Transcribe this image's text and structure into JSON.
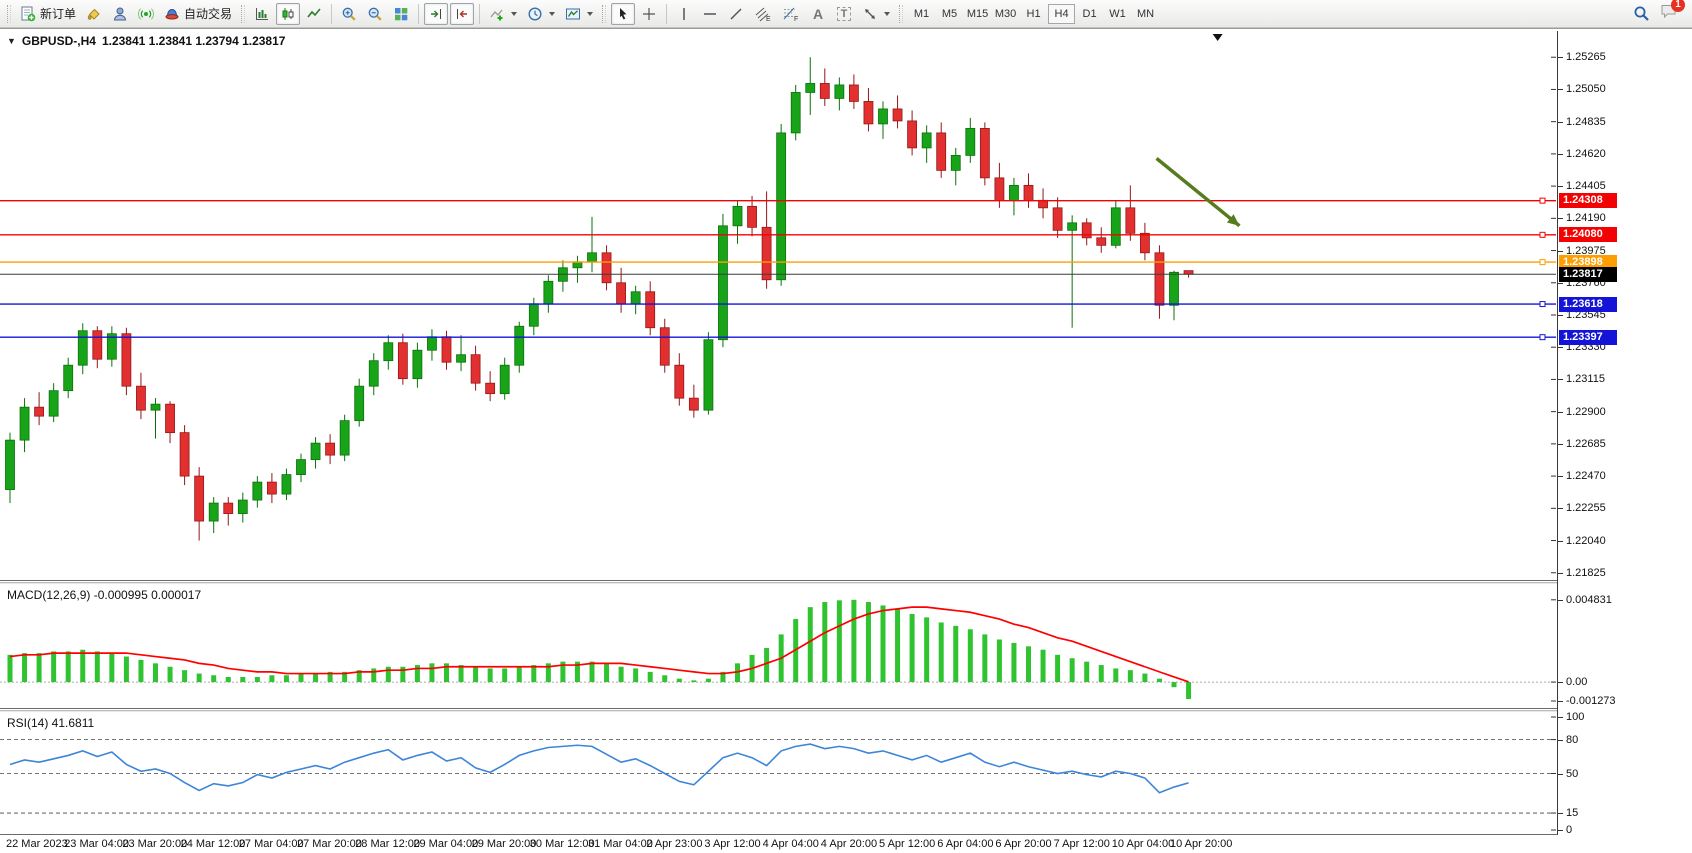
{
  "toolbar": {
    "new_order_label": "新订单",
    "auto_trading_label": "自动交易",
    "text_tool": "A",
    "text_label_tool": "T",
    "channel_suffix": "E",
    "fibo_suffix": "F",
    "timeframes": [
      "M1",
      "M5",
      "M15",
      "M30",
      "H1",
      "H4",
      "D1",
      "W1",
      "MN"
    ],
    "active_timeframe": "H4",
    "notification_count": "1"
  },
  "chart_data": [
    {
      "type": "candlestick",
      "symbol": "GBPUSD-,H4",
      "ohlc_display": "1.23841 1.23841 1.23794 1.23817",
      "ylim": [
        1.2177,
        1.2544
      ],
      "up_color": "#18a418",
      "up_stroke": "#0b700b",
      "down_color": "#e23030",
      "down_stroke": "#941717",
      "y_tick_labels": [
        "1.25265",
        "1.25050",
        "1.24835",
        "1.24620",
        "1.24405",
        "1.24190",
        "1.23975",
        "1.23760",
        "1.23545",
        "1.23330",
        "1.23115",
        "1.22900",
        "1.22685",
        "1.22470",
        "1.22255",
        "1.22040",
        "1.21825"
      ],
      "x_labels": [
        "22 Mar 2023",
        "23 Mar 04:00",
        "23 Mar 20:00",
        "24 Mar 12:00",
        "27 Mar 04:00",
        "27 Mar 20:00",
        "28 Mar 12:00",
        "29 Mar 04:00",
        "29 Mar 20:00",
        "30 Mar 12:00",
        "31 Mar 04:00",
        "2 Apr 23:00",
        "3 Apr 12:00",
        "4 Apr 04:00",
        "4 Apr 20:00",
        "5 Apr 12:00",
        "6 Apr 04:00",
        "6 Apr 20:00",
        "7 Apr 12:00",
        "10 Apr 04:00",
        "10 Apr 20:00"
      ],
      "levels": [
        {
          "price": 1.24308,
          "label": "1.24308",
          "color": "#f20202"
        },
        {
          "price": 1.2408,
          "label": "1.24080",
          "color": "#f20202"
        },
        {
          "price": 1.23898,
          "label": "1.23898",
          "color": "#ff9e00"
        },
        {
          "price": 1.23618,
          "label": "1.23618",
          "color": "#1414d8"
        },
        {
          "price": 1.23397,
          "label": "1.23397",
          "color": "#1414d8"
        }
      ],
      "current_price": {
        "price": 1.23817,
        "label": "1.23817",
        "line_color": "#3c3c3c",
        "badge_color": "#000000"
      },
      "annotations": {
        "arrow": {
          "from_index": 78.8,
          "from_price": 1.2459,
          "to_index": 84.5,
          "to_price": 1.2414,
          "color": "#567d1d"
        },
        "top_marker_index": 83
      },
      "candles": [
        [
          1.2238,
          1.2276,
          1.2229,
          1.2271
        ],
        [
          1.2271,
          1.2299,
          1.2263,
          1.2293
        ],
        [
          1.2293,
          1.2303,
          1.2281,
          1.2287
        ],
        [
          1.2287,
          1.2309,
          1.2283,
          1.2304
        ],
        [
          1.2304,
          1.2326,
          1.2299,
          1.2321
        ],
        [
          1.2321,
          1.2349,
          1.2315,
          1.2344
        ],
        [
          1.2344,
          1.2347,
          1.2319,
          1.2325
        ],
        [
          1.2325,
          1.2347,
          1.232,
          1.2342
        ],
        [
          1.2342,
          1.2346,
          1.2301,
          1.2307
        ],
        [
          1.2307,
          1.2316,
          1.2285,
          1.2291
        ],
        [
          1.2291,
          1.2299,
          1.2272,
          1.2295
        ],
        [
          1.2295,
          1.2297,
          1.2269,
          1.2276
        ],
        [
          1.2276,
          1.2281,
          1.2241,
          1.2247
        ],
        [
          1.2247,
          1.2253,
          1.2204,
          1.2217
        ],
        [
          1.2217,
          1.2233,
          1.2209,
          1.2229
        ],
        [
          1.2229,
          1.2233,
          1.2214,
          1.2222
        ],
        [
          1.2222,
          1.2236,
          1.2216,
          1.2231
        ],
        [
          1.2231,
          1.2247,
          1.2226,
          1.2243
        ],
        [
          1.2243,
          1.2249,
          1.2229,
          1.2235
        ],
        [
          1.2235,
          1.2252,
          1.2231,
          1.2248
        ],
        [
          1.2248,
          1.2262,
          1.2243,
          1.2258
        ],
        [
          1.2258,
          1.2273,
          1.2252,
          1.2269
        ],
        [
          1.2269,
          1.2275,
          1.2255,
          1.2261
        ],
        [
          1.2261,
          1.2288,
          1.2257,
          1.2284
        ],
        [
          1.2284,
          1.2312,
          1.228,
          1.2307
        ],
        [
          1.2307,
          1.2329,
          1.2301,
          1.2324
        ],
        [
          1.2324,
          1.2341,
          1.2318,
          1.2336
        ],
        [
          1.2336,
          1.2342,
          1.2308,
          1.2312
        ],
        [
          1.2312,
          1.2336,
          1.2306,
          1.2331
        ],
        [
          1.2331,
          1.2345,
          1.2324,
          1.234
        ],
        [
          1.234,
          1.2344,
          1.2318,
          1.2323
        ],
        [
          1.2323,
          1.2341,
          1.2317,
          1.2328
        ],
        [
          1.2328,
          1.2334,
          1.2304,
          1.2309
        ],
        [
          1.2309,
          1.2317,
          1.2297,
          1.2302
        ],
        [
          1.2302,
          1.2326,
          1.2298,
          1.2321
        ],
        [
          1.2321,
          1.235,
          1.2316,
          1.2347
        ],
        [
          1.2347,
          1.2366,
          1.2341,
          1.2362
        ],
        [
          1.2362,
          1.2381,
          1.2356,
          1.2377
        ],
        [
          1.2377,
          1.2391,
          1.237,
          1.2386
        ],
        [
          1.2386,
          1.2394,
          1.2376,
          1.239
        ],
        [
          1.239,
          1.242,
          1.2383,
          1.2396
        ],
        [
          1.2396,
          1.2401,
          1.2371,
          1.2376
        ],
        [
          1.2376,
          1.2386,
          1.2356,
          1.2362
        ],
        [
          1.2362,
          1.2374,
          1.2355,
          1.237
        ],
        [
          1.237,
          1.2377,
          1.2341,
          1.2346
        ],
        [
          1.2346,
          1.2352,
          1.2316,
          1.2321
        ],
        [
          1.2321,
          1.2329,
          1.2294,
          1.2299
        ],
        [
          1.2299,
          1.2308,
          1.2286,
          1.2291
        ],
        [
          1.2291,
          1.2343,
          1.2288,
          1.2338
        ],
        [
          1.2338,
          1.2422,
          1.2333,
          1.2414
        ],
        [
          1.2414,
          1.2431,
          1.2402,
          1.2427
        ],
        [
          1.2427,
          1.2434,
          1.2407,
          1.2413
        ],
        [
          1.2413,
          1.2437,
          1.2372,
          1.2378
        ],
        [
          1.2378,
          1.2482,
          1.2374,
          1.2476
        ],
        [
          1.2476,
          1.2508,
          1.2471,
          1.2503
        ],
        [
          1.2503,
          1.25265,
          1.2488,
          1.2509
        ],
        [
          1.2509,
          1.2519,
          1.2494,
          1.2499
        ],
        [
          1.2499,
          1.2513,
          1.2491,
          1.2508
        ],
        [
          1.2508,
          1.2515,
          1.2492,
          1.2497
        ],
        [
          1.2497,
          1.2506,
          1.2477,
          1.2482
        ],
        [
          1.2482,
          1.2497,
          1.2472,
          1.2492
        ],
        [
          1.2492,
          1.2501,
          1.2479,
          1.2484
        ],
        [
          1.2484,
          1.2491,
          1.2461,
          1.2466
        ],
        [
          1.2466,
          1.2481,
          1.2456,
          1.2476
        ],
        [
          1.2476,
          1.2483,
          1.2446,
          1.2451
        ],
        [
          1.2451,
          1.2466,
          1.2441,
          1.2461
        ],
        [
          1.2461,
          1.2486,
          1.2456,
          1.2479
        ],
        [
          1.2479,
          1.2483,
          1.2441,
          1.2446
        ],
        [
          1.2446,
          1.2456,
          1.2426,
          1.2431
        ],
        [
          1.2431,
          1.2446,
          1.2421,
          1.2441
        ],
        [
          1.2441,
          1.2449,
          1.2426,
          1.2431
        ],
        [
          1.2431,
          1.2439,
          1.2419,
          1.2426
        ],
        [
          1.2426,
          1.2433,
          1.2406,
          1.2411
        ],
        [
          1.2411,
          1.2421,
          1.2346,
          1.2416
        ],
        [
          1.2416,
          1.2419,
          1.2401,
          1.2406
        ],
        [
          1.2406,
          1.2413,
          1.2396,
          1.2401
        ],
        [
          1.2401,
          1.2431,
          1.2399,
          1.2426
        ],
        [
          1.2426,
          1.2441,
          1.2404,
          1.2409
        ],
        [
          1.2409,
          1.2416,
          1.2391,
          1.2396
        ],
        [
          1.2396,
          1.2401,
          1.2352,
          1.2361
        ],
        [
          1.2361,
          1.2384,
          1.2351,
          1.2383
        ],
        [
          1.23841,
          1.23841,
          1.23794,
          1.23817
        ]
      ]
    },
    {
      "type": "bar",
      "label": "MACD(12,26,9) -0.000995 0.000017",
      "ylim": [
        -0.00158,
        0.0057
      ],
      "histogram_color": "#2fc32f",
      "signal_color": "#ff0000",
      "y_ticks": [
        {
          "v": 0.004831,
          "label": "0.004831"
        },
        {
          "v": 0.0,
          "label": "0.00"
        },
        {
          "v": -0.001273,
          "label": "-0.001273"
        }
      ],
      "histogram": [
        0.0016,
        0.0017,
        0.0017,
        0.0018,
        0.0018,
        0.0019,
        0.0018,
        0.0017,
        0.0015,
        0.0013,
        0.0011,
        0.0009,
        0.0007,
        0.0005,
        0.0004,
        0.0003,
        0.0003,
        0.0003,
        0.0004,
        0.0004,
        0.0005,
        0.0005,
        0.0006,
        0.0006,
        0.0007,
        0.0008,
        0.0009,
        0.0009,
        0.001,
        0.0011,
        0.0011,
        0.001,
        0.0009,
        0.0008,
        0.0008,
        0.0009,
        0.001,
        0.0011,
        0.0012,
        0.0012,
        0.0012,
        0.0011,
        0.0009,
        0.0008,
        0.0006,
        0.0004,
        0.0002,
        0.0001,
        0.0002,
        0.0006,
        0.0011,
        0.0016,
        0.002,
        0.0028,
        0.0037,
        0.0044,
        0.0047,
        0.0048,
        0.004831,
        0.0047,
        0.0045,
        0.0043,
        0.004,
        0.0038,
        0.0035,
        0.0033,
        0.0031,
        0.0028,
        0.0025,
        0.0023,
        0.0021,
        0.0019,
        0.0016,
        0.0014,
        0.0012,
        0.001,
        0.0008,
        0.0007,
        0.0005,
        0.0002,
        -0.0003,
        -0.000995
      ],
      "signal": [
        0.0015,
        0.0016,
        0.0016,
        0.0017,
        0.0017,
        0.0017,
        0.0017,
        0.0017,
        0.0017,
        0.0016,
        0.0015,
        0.0014,
        0.0013,
        0.0011,
        0.001,
        0.0008,
        0.0007,
        0.0006,
        0.0006,
        0.0005,
        0.0005,
        0.0005,
        0.0005,
        0.0005,
        0.0006,
        0.0006,
        0.0007,
        0.0007,
        0.0008,
        0.0008,
        0.0009,
        0.0009,
        0.0009,
        0.0009,
        0.0009,
        0.0009,
        0.0009,
        0.0009,
        0.001,
        0.001,
        0.0011,
        0.0011,
        0.0011,
        0.001,
        0.0009,
        0.0008,
        0.0007,
        0.0006,
        0.0005,
        0.0005,
        0.0006,
        0.0008,
        0.0011,
        0.0014,
        0.0019,
        0.0024,
        0.0029,
        0.0033,
        0.0037,
        0.004,
        0.0042,
        0.0043,
        0.0044,
        0.0044,
        0.0043,
        0.0042,
        0.0041,
        0.0039,
        0.0037,
        0.0034,
        0.0032,
        0.0029,
        0.0026,
        0.0024,
        0.0021,
        0.0018,
        0.0015,
        0.0012,
        0.0009,
        0.0006,
        0.0003,
        1.7e-05
      ]
    },
    {
      "type": "line",
      "label": "RSI(14) 41.6811",
      "ylim": [
        0,
        100
      ],
      "line_color": "#3d85d8",
      "dashed_levels": [
        80,
        50,
        15
      ],
      "y_ticks": [
        {
          "v": 100,
          "label": "100"
        },
        {
          "v": 80,
          "label": "80"
        },
        {
          "v": 50,
          "label": "50"
        },
        {
          "v": 15,
          "label": "15"
        },
        {
          "v": 0,
          "label": "0"
        }
      ],
      "values": [
        58,
        62,
        60,
        63,
        66,
        70,
        65,
        69,
        58,
        52,
        54,
        50,
        42,
        35,
        41,
        39,
        42,
        49,
        46,
        51,
        54,
        57,
        54,
        60,
        64,
        68,
        71,
        62,
        66,
        69,
        61,
        64,
        55,
        51,
        58,
        66,
        70,
        73,
        74,
        75,
        74,
        67,
        60,
        63,
        57,
        50,
        43,
        40,
        52,
        64,
        68,
        64,
        57,
        70,
        74,
        76,
        72,
        74,
        72,
        68,
        70,
        66,
        62,
        66,
        60,
        64,
        68,
        60,
        56,
        60,
        56,
        53,
        50,
        52,
        49,
        47,
        52,
        50,
        46,
        33,
        38,
        41.6811
      ]
    }
  ]
}
